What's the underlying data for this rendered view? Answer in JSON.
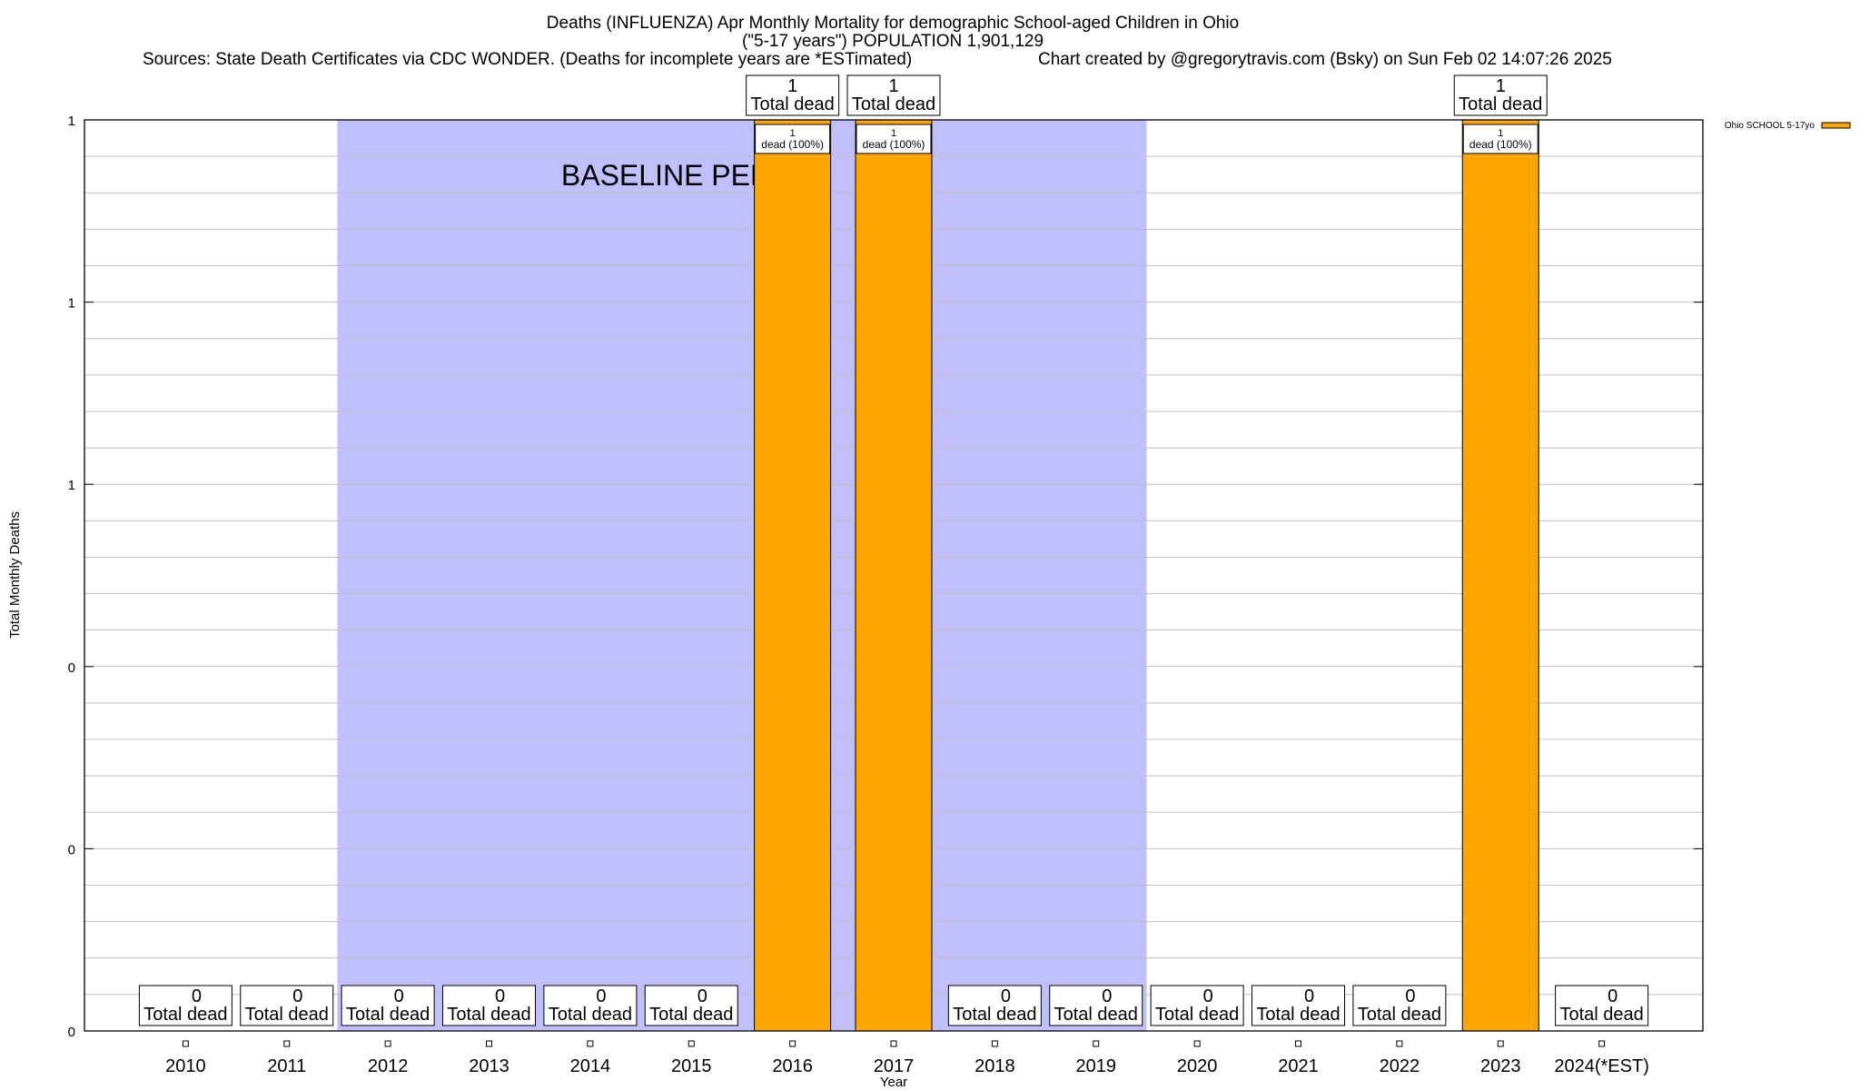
{
  "chart_data": {
    "type": "bar",
    "title_lines": [
      "Deaths (INFLUENZA) Apr Monthly Mortality for demographic School-aged Children in Ohio",
      "(\"5-17 years\") POPULATION 1,901,129"
    ],
    "sources": "Sources: State Death Certificates via CDC WONDER. (Deaths for incomplete years are *ESTimated)",
    "credit": "Chart created by @gregorytravis.com (Bsky) on Sun Feb 02 14:07:26 2025",
    "xlabel": "Year",
    "ylabel": "Total Monthly Deaths",
    "categories": [
      "2010",
      "2011",
      "2012",
      "2013",
      "2014",
      "2015",
      "2016",
      "2017",
      "2018",
      "2019",
      "2020",
      "2021",
      "2022",
      "2023",
      "2024(*EST)"
    ],
    "series": [
      {
        "name": "Ohio SCHOOL 5-17yo",
        "color": "#ffa500",
        "values": [
          0,
          0,
          0,
          0,
          0,
          0,
          1,
          1,
          0,
          0,
          0,
          0,
          0,
          1,
          0
        ]
      }
    ],
    "total_label_text": "Total dead",
    "bar_label_text": "dead (100%)",
    "ylim": [
      0,
      1
    ],
    "y_tick_labels": [
      "0",
      "0",
      "0",
      "1",
      "1",
      "1"
    ],
    "baseline": {
      "label": "BASELINE PERIOD",
      "from": "2012",
      "to": "2019",
      "color": "#c0c0ff"
    },
    "grid": true,
    "legend_position": "top-right"
  }
}
